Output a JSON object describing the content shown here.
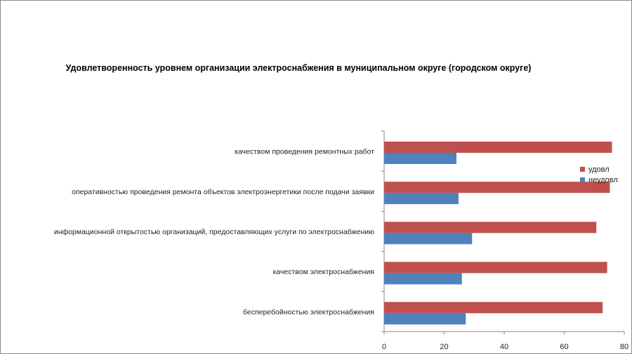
{
  "chart_data": {
    "type": "bar",
    "orientation": "horizontal",
    "title": "Удовлетворенность уровнем организации электроснабжения в муниципальном округе (городском округе)",
    "categories": [
      "бесперебойностью электроснабжения",
      "качеством электроснабжения",
      "информационной открытостью организаций, предоставляющих услуги по электроснабжению",
      "оперативностью проведения ремонта объектов электроэнергетики после подачи заявки",
      "качеством проведения ремонтных работ"
    ],
    "series": [
      {
        "name": "неудовл",
        "color": "#4f81bd",
        "values": [
          27.2,
          25.9,
          29.3,
          24.8,
          24.1
        ]
      },
      {
        "name": "удовл",
        "color": "#c0504d",
        "values": [
          72.8,
          74.3,
          70.7,
          75.2,
          75.9
        ]
      }
    ],
    "xlim": [
      0,
      80
    ],
    "xticks": [
      0,
      20,
      40,
      60,
      80
    ],
    "legend_position": "right",
    "grid": false
  }
}
